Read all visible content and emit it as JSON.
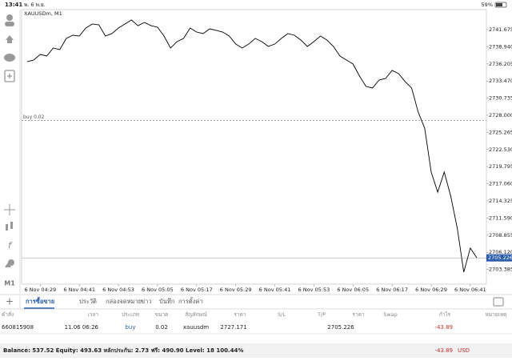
{
  "status_bar": {
    "time": "13:41",
    "date": "พ. 6 พ.ย.",
    "battery": "59%"
  },
  "chart_data": {
    "type": "line",
    "title": "XAUUSDm, M1",
    "x": [
      "6 Nov 04:25",
      "6 Nov 04:27",
      "6 Nov 04:29",
      "6 Nov 04:31",
      "6 Nov 04:33",
      "6 Nov 04:35",
      "6 Nov 04:37",
      "6 Nov 04:39",
      "6 Nov 04:41",
      "6 Nov 04:43",
      "6 Nov 04:45",
      "6 Nov 04:47",
      "6 Nov 04:49",
      "6 Nov 04:51",
      "6 Nov 04:53",
      "6 Nov 04:55",
      "6 Nov 04:57",
      "6 Nov 04:59",
      "6 Nov 05:01",
      "6 Nov 05:03",
      "6 Nov 05:05",
      "6 Nov 05:07",
      "6 Nov 05:09",
      "6 Nov 05:11",
      "6 Nov 05:13",
      "6 Nov 05:15",
      "6 Nov 05:17",
      "6 Nov 05:19",
      "6 Nov 05:21",
      "6 Nov 05:23",
      "6 Nov 05:25",
      "6 Nov 05:27",
      "6 Nov 05:29",
      "6 Nov 05:31",
      "6 Nov 05:33",
      "6 Nov 05:35",
      "6 Nov 05:37",
      "6 Nov 05:39",
      "6 Nov 05:41",
      "6 Nov 05:43",
      "6 Nov 05:45",
      "6 Nov 05:47",
      "6 Nov 05:49",
      "6 Nov 05:51",
      "6 Nov 05:53",
      "6 Nov 05:55",
      "6 Nov 05:57",
      "6 Nov 05:59",
      "6 Nov 06:01",
      "6 Nov 06:03",
      "6 Nov 06:05",
      "6 Nov 06:07",
      "6 Nov 06:09",
      "6 Nov 06:11",
      "6 Nov 06:13",
      "6 Nov 06:15",
      "6 Nov 06:17",
      "6 Nov 06:19",
      "6 Nov 06:21",
      "6 Nov 06:23",
      "6 Nov 06:25",
      "6 Nov 06:27",
      "6 Nov 06:29",
      "6 Nov 06:31",
      "6 Nov 06:33",
      "6 Nov 06:35",
      "6 Nov 06:37",
      "6 Nov 06:39",
      "6 Nov 06:41",
      "6 Nov 06:43"
    ],
    "series": [
      {
        "color": "#000000",
        "values": [
          2736.56,
          2736.82,
          2737.71,
          2737.46,
          2738.74,
          2738.48,
          2740.27,
          2740.78,
          2740.65,
          2741.93,
          2742.57,
          2742.44,
          2740.65,
          2741.04,
          2741.93,
          2742.57,
          2743.21,
          2742.31,
          2742.83,
          2742.31,
          2742.06,
          2740.65,
          2738.74,
          2739.76,
          2740.27,
          2741.93,
          2741.29,
          2741.04,
          2741.8,
          2741.55,
          2741.29,
          2740.65,
          2739.37,
          2738.74,
          2739.37,
          2740.27,
          2739.76,
          2738.99,
          2739.37,
          2740.27,
          2741.04,
          2740.78,
          2740.01,
          2738.99,
          2739.76,
          2740.65,
          2740.01,
          2738.99,
          2737.46,
          2736.82,
          2736.18,
          2734.26,
          2732.6,
          2732.35,
          2733.62,
          2733.88,
          2735.16,
          2734.65,
          2733.37,
          2732.35,
          2728.51,
          2725.95,
          2718.93,
          2715.73,
          2718.93,
          2715.09,
          2709.98,
          2702.95,
          2706.79,
          2705.25
        ]
      }
    ],
    "xticks": [
      "6 Nov 04:29",
      "6 Nov 04:41",
      "6 Nov 04:53",
      "6 Nov 05:05",
      "6 Nov 05:17",
      "6 Nov 05:29",
      "6 Nov 05:41",
      "6 Nov 05:53",
      "6 Nov 06:05",
      "6 Nov 06:17",
      "6 Nov 06:29",
      "6 Nov 06:41"
    ],
    "ylim": [
      2701.03,
      2744.87
    ],
    "yticks": [
      2741.675,
      {
        "value": 2738.94,
        "label": "2738.940"
      },
      2736.205,
      {
        "value": 2733.47,
        "label": "2733.470"
      },
      2730.735,
      {
        "value": 2728,
        "label": "2728.000"
      },
      2725.265,
      {
        "value": 2722.53,
        "label": "2722.530"
      },
      2719.795,
      {
        "value": 2717.06,
        "label": "2717.060"
      },
      2714.325,
      {
        "value": 2711.59,
        "label": "2711.590"
      },
      2708.855,
      {
        "value": 2706.12,
        "label": "2706.120"
      },
      2703.385
    ],
    "buy_line": {
      "label": "buy 0.02",
      "value": 2727.171,
      "color": "#888888"
    },
    "price_line": {
      "value": 2705.226,
      "label": "2705.226",
      "color": "#2a5caa"
    },
    "grid": false
  },
  "tabs": [
    "การซื้อขาย",
    "ประวัติ",
    "กล่องจดหมาย",
    "ข่าว",
    "บันทึก",
    "การตั้งค่า"
  ],
  "left_toolbar": {
    "timeframe": "M1"
  },
  "table": {
    "headers": [
      "คำสั่ง",
      "เวลา",
      "ประเภท",
      "ขนาด",
      "สัญลักษณ์",
      "ราคา",
      "S/L",
      "T/P",
      "ราคา",
      "Swap",
      "กำไร",
      "หมายเหตุ"
    ],
    "row": {
      "order": "660815908",
      "time": "11.06 06:26",
      "type": "buy",
      "volume": "0.02",
      "symbol": "xauusdm",
      "open_price": "2727.171",
      "price": "2705.226",
      "profit": "-43.89"
    }
  },
  "footer": {
    "summary": "Balance: 537.52 Equity: 493.63 หลักประกัน: 2.73 ฟรี: 490.90 Level: 18 100.44%",
    "profit": "-43.89",
    "currency": "USD"
  }
}
